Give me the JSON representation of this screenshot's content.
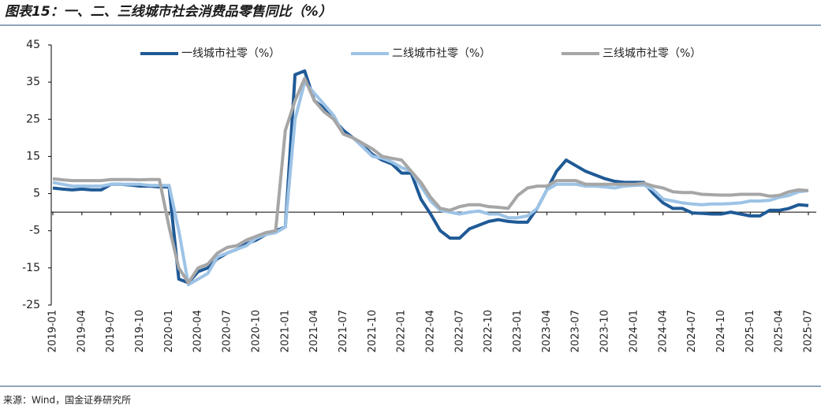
{
  "chart_data": {
    "type": "line",
    "title": "图表15：一、二、三线城市社会消费品零售同比（%）",
    "source": "来源：Wind，国金证券研究所",
    "categories": [
      "2019-01",
      null,
      null,
      "2019-04",
      null,
      null,
      "2019-07",
      null,
      null,
      "2019-10",
      null,
      null,
      "2020-01",
      null,
      null,
      "2020-04",
      null,
      null,
      "2020-07",
      null,
      null,
      "2020-10",
      null,
      null,
      "2021-01",
      null,
      null,
      "2021-04",
      null,
      null,
      "2021-07",
      null,
      null,
      "2021-10",
      null,
      null,
      "2022-01",
      null,
      null,
      "2022-04",
      null,
      null,
      "2022-07",
      null,
      null,
      "2022-10",
      null,
      null,
      "2023-01",
      null,
      null,
      "2023-04",
      null,
      null,
      "2023-07",
      null,
      null,
      "2023-10",
      null,
      null,
      "2024-01",
      null,
      null,
      "2024-04",
      null,
      null,
      "2024-07",
      null,
      null,
      "2024-10",
      null,
      null,
      "2025-01",
      null,
      null,
      "2025-04",
      null,
      null,
      "2025-07"
    ],
    "series": [
      {
        "name": "一线城市社零（%）",
        "color": "#1f5a96",
        "values": [
          6.5,
          6.2,
          6,
          6.2,
          6,
          6,
          7.5,
          7.5,
          7.3,
          7,
          7,
          6.8,
          6.8,
          -18,
          -19,
          -16,
          -15,
          -12.5,
          -11,
          -10,
          -8.5,
          -7.5,
          -6,
          -5,
          -4,
          37,
          38,
          30,
          28,
          25,
          22,
          20,
          18,
          15.5,
          14,
          13,
          10.5,
          10.5,
          3.5,
          -0.5,
          -5,
          -7,
          -7,
          -4.5,
          -3.5,
          -2.5,
          -2,
          -2.5,
          -2.7,
          -2.7,
          1,
          6,
          11,
          14,
          12.5,
          11,
          10,
          9,
          8.3,
          8,
          8,
          8,
          5,
          2.5,
          1,
          1,
          -0.2,
          -0.3,
          -0.5,
          -0.5,
          0,
          -0.5,
          -1,
          -1,
          0.5,
          0.5,
          1,
          2,
          1.8
        ]
      },
      {
        "name": "二线城市社零（%）",
        "color": "#9dc3e6",
        "values": [
          8,
          7.5,
          7,
          7,
          7,
          7,
          7.5,
          7.5,
          7.5,
          7.5,
          7.2,
          7.2,
          7.2,
          -5,
          -19.5,
          -18,
          -16.5,
          -12,
          -11,
          -10,
          -9,
          -7,
          -6,
          -5.5,
          -4,
          25,
          35,
          32,
          29,
          26,
          21,
          20,
          17.5,
          15,
          14.5,
          13.5,
          12,
          11,
          7,
          3,
          0.5,
          0,
          -0.5,
          0,
          0.3,
          -0.5,
          -0.5,
          -1.5,
          -1.5,
          -1,
          1,
          6,
          7.5,
          7.5,
          7.5,
          7,
          7,
          6.8,
          6.5,
          7,
          7.2,
          7.3,
          6,
          3.5,
          3,
          2.5,
          2.2,
          2,
          2.2,
          2.2,
          2.3,
          2.5,
          3,
          3,
          3.2,
          4,
          4.5,
          5.5,
          5.8
        ]
      },
      {
        "name": "三线城市社零（%）",
        "color": "#a6a6a6",
        "values": [
          9,
          8.7,
          8.5,
          8.5,
          8.5,
          8.5,
          8.8,
          8.8,
          8.8,
          8.7,
          8.8,
          8.8,
          -4,
          -15,
          -19,
          -15,
          -14,
          -11,
          -9.5,
          -9,
          -7.5,
          -6.5,
          -5.5,
          -5,
          22,
          30,
          36,
          30,
          27,
          25,
          21,
          20,
          18.5,
          17,
          15,
          14.5,
          14,
          11,
          8,
          4,
          1,
          0.5,
          1.5,
          2,
          2,
          1.5,
          1.3,
          1,
          4.5,
          6.5,
          7,
          7,
          8.5,
          8.5,
          8.5,
          7.5,
          7.5,
          7.5,
          7.5,
          7.5,
          7.5,
          7.8,
          7,
          6.5,
          5.5,
          5.3,
          5.3,
          4.8,
          4.7,
          4.6,
          4.6,
          4.8,
          4.8,
          4.8,
          4.3,
          4.5,
          5.5,
          6,
          5.8
        ]
      }
    ],
    "ylim": [
      -25,
      45
    ],
    "yticks": [
      45,
      35,
      25,
      15,
      5,
      -5,
      -15,
      -25
    ],
    "legend": "top"
  }
}
